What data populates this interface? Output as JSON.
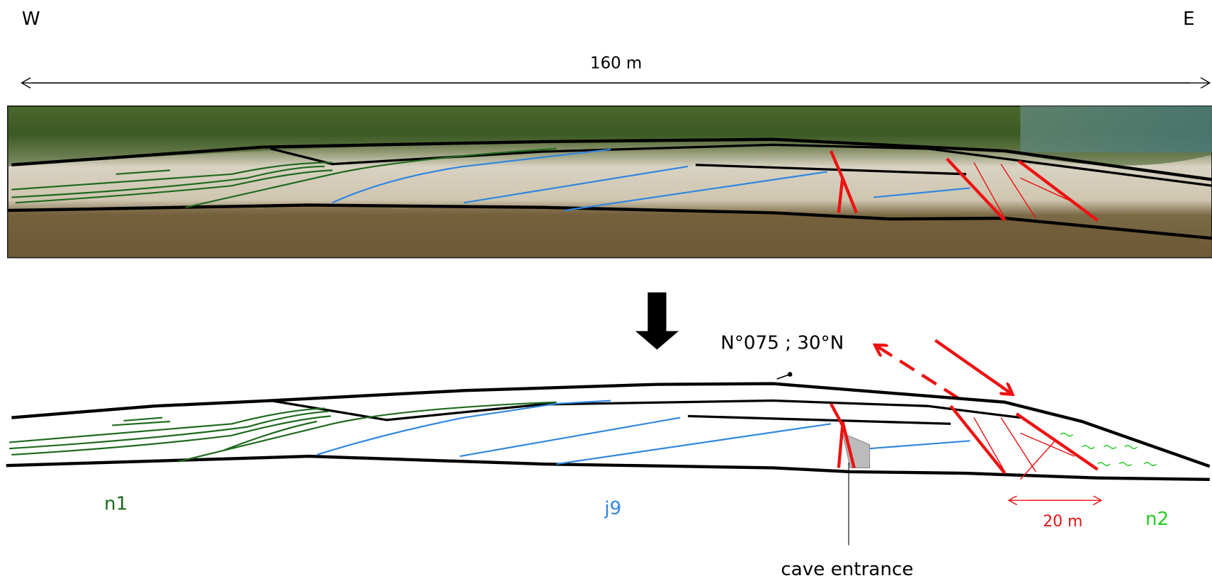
{
  "labels": {
    "west": "W",
    "east": "E",
    "scale_top": "160 m",
    "orientation": "N°075 ; 30°N",
    "unit_n1": "n1",
    "unit_j9": "j9",
    "unit_n2": "n2",
    "scale_fault": "20 m",
    "cave": "cave entrance"
  }
}
